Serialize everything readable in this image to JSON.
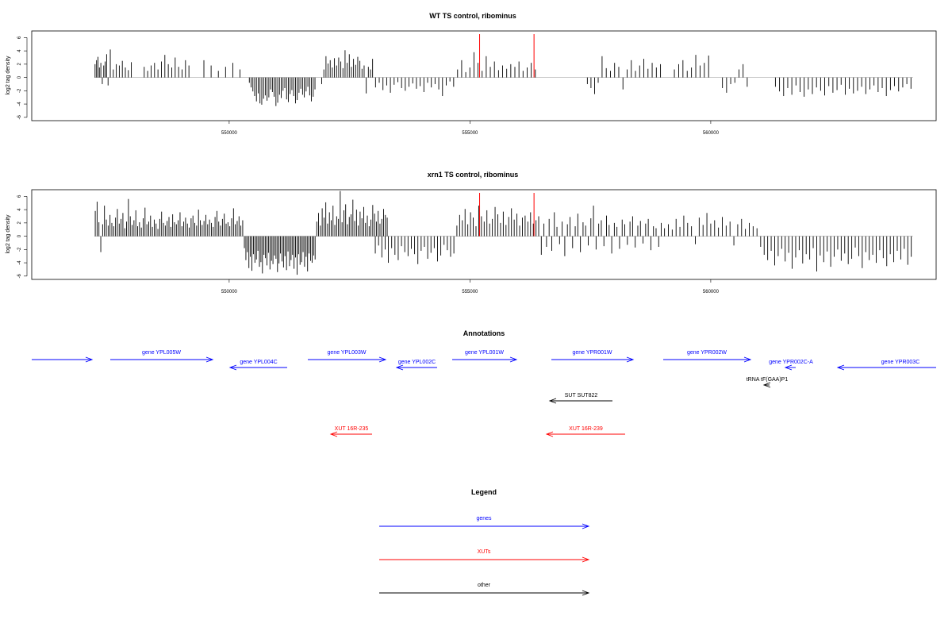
{
  "chart_data": [
    {
      "type": "bar",
      "title": "WT TS control, ribominus",
      "ylabel": "log2 tag density",
      "xlabel": "",
      "ylim": [
        -6.5,
        7
      ],
      "yticks": [
        -6,
        -4,
        -2,
        0,
        2,
        4,
        6
      ],
      "xticks": [
        550000,
        555000,
        560000
      ],
      "xlim": [
        545900,
        564680
      ],
      "grid": false,
      "marker_lines": {
        "x": [
          555200,
          556330
        ],
        "color": "#ff0000"
      },
      "series": [
        {
          "x_range": [
            547200,
            547500
          ],
          "values": [
            2.0,
            2.6,
            3.1,
            1.5,
            2.2,
            -1.0,
            1.8,
            2.4,
            3.5,
            -1.2
          ]
        },
        {
          "x_range": [
            547500,
            548000
          ],
          "values": [
            4.2,
            1.2,
            2.0,
            1.8,
            2.5,
            1.5,
            1.1,
            2.3
          ]
        },
        {
          "x_range": [
            548200,
            549200
          ],
          "values": [
            1.6,
            1.0,
            1.8,
            2.2,
            1.2,
            2.4,
            3.4,
            2.0,
            1.5,
            3.0,
            1.6,
            1.2,
            2.6,
            1.8
          ]
        },
        {
          "x_range": [
            549400,
            550300
          ],
          "values": [
            2.6,
            1.8,
            1.0,
            1.6,
            2.2,
            1.2
          ]
        },
        {
          "x_range": [
            550400,
            551800
          ],
          "values": [
            -0.8,
            -1.5,
            -2.1,
            -2.8,
            -3.6,
            -2.4,
            -3.9,
            -4.1,
            -3.2,
            -2.7,
            -3.5,
            -3.0,
            -1.8,
            -2.2,
            -2.9,
            -4.3,
            -3.8,
            -2.6,
            -3.1,
            -2.0,
            -1.6,
            -3.3,
            -3.7,
            -2.5,
            -1.9,
            -2.8,
            -3.9,
            -3.4,
            -2.3,
            -1.7,
            -2.6,
            -3.0,
            -2.1,
            -1.4,
            -2.7,
            -3.6,
            -2.9,
            -1.8
          ]
        },
        {
          "x_range": [
            551900,
            553000
          ],
          "values": [
            -1.0,
            1.2,
            3.2,
            2.1,
            2.6,
            1.5,
            2.9,
            1.8,
            3.0,
            2.4,
            1.4,
            4.1,
            2.2,
            3.5,
            1.6,
            2.8,
            1.9,
            3.1,
            2.5,
            1.3,
            1.8,
            -2.4,
            1.6,
            1.2,
            2.8
          ]
        },
        {
          "x_range": [
            553000,
            554700
          ],
          "values": [
            -1.5,
            -0.8,
            -1.9,
            -1.2,
            -2.3,
            -1.1,
            -0.7,
            -1.6,
            -2.0,
            -1.4,
            -0.9,
            -1.7,
            -1.3,
            -2.2,
            -0.8,
            -1.5,
            -1.0,
            -1.8,
            -2.8,
            -1.2,
            -0.6,
            -1.4
          ]
        },
        {
          "x_range": [
            554700,
            556400
          ],
          "values": [
            1.2,
            2.6,
            0.8,
            1.5,
            3.8,
            2.2,
            1.0,
            3.2,
            1.6,
            2.4,
            1.1,
            1.8,
            1.3,
            2.0,
            1.6,
            2.4,
            1.0,
            1.5,
            2.2,
            1.2
          ]
        },
        {
          "x_range": [
            557400,
            557700
          ],
          "values": [
            -1.0,
            -1.6,
            -2.5,
            -0.8
          ]
        },
        {
          "x_range": [
            557700,
            559000
          ],
          "values": [
            3.2,
            1.4,
            1.0,
            2.2,
            1.6,
            -1.8,
            1.2,
            2.6,
            1.0,
            1.8,
            2.8,
            1.3,
            2.2,
            1.5,
            2.0
          ]
        },
        {
          "x_range": [
            559200,
            560000
          ],
          "values": [
            1.2,
            2.0,
            2.6,
            1.0,
            1.5,
            3.4,
            1.8,
            2.2,
            3.3
          ]
        },
        {
          "x_range": [
            560200,
            560800
          ],
          "values": [
            -1.6,
            -2.3,
            -1.0,
            -0.8,
            1.2,
            2.0,
            -1.4
          ]
        },
        {
          "x_range": [
            561300,
            564200
          ],
          "values": [
            -1.4,
            -2.1,
            -2.8,
            -1.6,
            -2.6,
            -1.2,
            -2.2,
            -2.9,
            -1.8,
            -2.5,
            -1.5,
            -2.0,
            -2.7,
            -1.3,
            -2.3,
            -1.9,
            -1.1,
            -2.6,
            -1.7,
            -2.4,
            -2.0,
            -1.4,
            -2.5,
            -1.8,
            -1.2,
            -2.2,
            -1.6,
            -2.8,
            -1.9,
            -1.3,
            -2.1,
            -1.5,
            -1.0,
            -1.7
          ]
        }
      ]
    },
    {
      "type": "bar",
      "title": "xrn1 TS control, ribominus",
      "ylabel": "log2 tag density",
      "xlabel": "",
      "ylim": [
        -6.5,
        7
      ],
      "yticks": [
        -6,
        -4,
        -2,
        0,
        2,
        4,
        6
      ],
      "xticks": [
        550000,
        555000,
        560000
      ],
      "xlim": [
        545900,
        564680
      ],
      "grid": false,
      "marker_lines": {
        "x": [
          555200,
          556330
        ],
        "color": "#ff0000"
      },
      "series": [
        {
          "x_range": [
            547200,
            550300
          ],
          "values": [
            3.8,
            5.2,
            2.1,
            -2.4,
            1.8,
            4.6,
            2.5,
            1.6,
            3.2,
            2.0,
            1.5,
            2.8,
            4.1,
            1.9,
            2.6,
            3.5,
            1.2,
            2.2,
            5.6,
            3.0,
            1.7,
            2.4,
            3.9,
            1.5,
            2.1,
            1.3,
            2.7,
            4.3,
            1.8,
            2.2,
            3.1,
            1.4,
            2.5,
            1.9,
            1.1,
            2.6,
            3.7,
            2.0,
            1.6,
            2.3,
            2.9,
            1.4,
            3.3,
            2.1,
            1.8,
            2.4,
            3.6,
            1.5,
            2.2,
            2.8,
            1.9,
            1.3,
            2.7,
            3.1,
            2.0,
            1.6,
            4.0,
            2.4,
            1.7,
            2.3,
            3.2,
            1.8,
            2.5,
            2.0,
            1.4,
            2.9,
            3.8,
            2.2,
            1.6,
            2.6,
            3.4,
            1.9,
            2.1,
            1.5,
            2.7,
            4.2,
            1.8,
            2.3,
            3.0,
            1.6,
            2.4
          ]
        },
        {
          "x_range": [
            550300,
            551800
          ],
          "values": [
            -1.8,
            -3.6,
            -2.4,
            -4.8,
            -3.1,
            -5.2,
            -2.7,
            -4.0,
            -3.5,
            -2.2,
            -4.6,
            -3.9,
            -5.6,
            -2.8,
            -3.3,
            -4.4,
            -2.5,
            -5.0,
            -3.7,
            -4.2,
            -2.9,
            -3.4,
            -5.4,
            -4.1,
            -2.6,
            -3.8,
            -4.7,
            -3.0,
            -5.1,
            -2.3,
            -4.5,
            -3.6,
            -2.8,
            -4.9,
            -3.2,
            -5.8,
            -2.7,
            -4.3,
            -3.9,
            -2.4,
            -4.6,
            -3.1,
            -5.3,
            -2.6,
            -3.7,
            -4.0,
            -2.9,
            -3.5
          ]
        },
        {
          "x_range": [
            551800,
            553300
          ],
          "values": [
            2.2,
            3.5,
            1.6,
            4.2,
            2.8,
            5.1,
            1.9,
            3.6,
            2.4,
            4.6,
            1.7,
            3.0,
            2.6,
            6.8,
            2.1,
            3.9,
            4.8,
            1.8,
            2.9,
            3.3,
            5.5,
            2.3,
            4.0,
            1.6,
            3.7,
            2.7,
            4.4,
            2.0,
            3.1,
            1.5,
            2.5,
            4.7,
            3.4,
            2.2,
            3.8,
            1.9,
            2.6,
            4.1,
            3.2,
            2.8
          ]
        },
        {
          "x_range": [
            553000,
            554700
          ],
          "values": [
            -2.6,
            -1.4,
            -3.2,
            -2.0,
            -4.0,
            -1.8,
            -2.8,
            -3.6,
            -1.5,
            -2.4,
            -3.0,
            -1.9,
            -2.7,
            -4.2,
            -2.2,
            -1.6,
            -3.4,
            -2.5,
            -1.8,
            -3.8,
            -2.9,
            -1.3,
            -2.1,
            -3.1,
            -2.6
          ]
        },
        {
          "x_range": [
            554700,
            556400
          ],
          "values": [
            1.6,
            3.2,
            2.4,
            4.1,
            1.8,
            3.6,
            2.8,
            1.5,
            4.6,
            3.0,
            2.2,
            3.9,
            1.9,
            2.6,
            4.4,
            3.3,
            2.0,
            3.7,
            1.7,
            2.9,
            4.2,
            2.5,
            3.4,
            1.6,
            2.8,
            3.1,
            2.2,
            3.6,
            1.9,
            2.4
          ]
        },
        {
          "x_range": [
            556400,
            559000
          ],
          "values": [
            3.0,
            -2.8,
            1.9,
            -1.6,
            2.6,
            -2.2,
            3.6,
            1.4,
            -1.2,
            2.2,
            -3.0,
            1.8,
            2.9,
            -1.8,
            1.5,
            3.4,
            -2.4,
            2.1,
            1.6,
            -1.4,
            2.7,
            4.6,
            -2.0,
            1.9,
            2.4,
            -1.5,
            3.1,
            1.7,
            -2.6,
            2.0,
            1.4,
            -1.9,
            2.5,
            1.8,
            -1.3,
            2.2,
            3.0,
            -1.7,
            1.6,
            2.3,
            -1.1,
            1.9,
            2.6,
            -2.1,
            1.5,
            1.2,
            -1.6,
            2.0
          ]
        },
        {
          "x_range": [
            559000,
            561000
          ],
          "values": [
            1.2,
            1.8,
            1.0,
            2.6,
            1.4,
            3.1,
            2.0,
            1.5,
            -1.2,
            2.8,
            1.7,
            3.5,
            1.9,
            2.4,
            1.3,
            2.9,
            1.6,
            2.2,
            -1.4,
            1.8,
            2.6,
            1.1,
            2.0,
            1.5,
            1.2
          ]
        },
        {
          "x_range": [
            561000,
            564200
          ],
          "values": [
            -1.6,
            -2.8,
            -3.6,
            -2.2,
            -4.4,
            -3.0,
            -1.9,
            -3.8,
            -2.5,
            -4.9,
            -3.2,
            -2.1,
            -4.1,
            -2.7,
            -3.5,
            -1.8,
            -5.3,
            -2.9,
            -3.9,
            -2.3,
            -4.6,
            -3.1,
            -2.0,
            -3.7,
            -2.6,
            -4.2,
            -3.4,
            -1.7,
            -3.0,
            -4.8,
            -2.4,
            -3.6,
            -2.8,
            -4.0,
            -2.1,
            -3.3,
            -4.5,
            -2.7,
            -3.9,
            -2.2,
            -3.5,
            -1.9,
            -4.3,
            -3.1
          ]
        }
      ]
    }
  ],
  "annotations": {
    "title": "Annotations",
    "items": [
      {
        "label": "",
        "x1": 40,
        "x2": 116,
        "row": 0,
        "dir": "right",
        "color": "#0000ff"
      },
      {
        "label": "gene YPL005W",
        "x1": 139,
        "x2": 268,
        "row": 0,
        "dir": "right",
        "color": "#0000ff"
      },
      {
        "label": "gene YPL004C",
        "x1": 290,
        "x2": 362,
        "row": 1,
        "dir": "left",
        "color": "#0000ff"
      },
      {
        "label": "gene YPL003W",
        "x1": 388,
        "x2": 486,
        "row": 0,
        "dir": "right",
        "color": "#0000ff"
      },
      {
        "label": "gene YPL002C",
        "x1": 500,
        "x2": 551,
        "row": 1,
        "dir": "left",
        "color": "#0000ff"
      },
      {
        "label": "gene YPL001W",
        "x1": 570,
        "x2": 651,
        "row": 0,
        "dir": "right",
        "color": "#0000ff"
      },
      {
        "label": "gene YPR001W",
        "x1": 695,
        "x2": 798,
        "row": 0,
        "dir": "right",
        "color": "#0000ff"
      },
      {
        "label": "gene YPR002W",
        "x1": 836,
        "x2": 946,
        "row": 0,
        "dir": "right",
        "color": "#0000ff"
      },
      {
        "label": "gene YPR002C-A",
        "x1": 990,
        "x2": 1003,
        "row": 1,
        "dir": "left",
        "color": "#0000ff"
      },
      {
        "label": "gene YPR003C",
        "x1": 1056,
        "x2": 1180,
        "row": 1,
        "dir": "left",
        "color": "#0000ff"
      },
      {
        "label": "tRNA tF(GAA)P1",
        "x1": 963,
        "x2": 970,
        "row": 2,
        "dir": "left",
        "color": "#000000"
      },
      {
        "label": "SUT SUT822",
        "x1": 693,
        "x2": 772,
        "row": 3,
        "dir": "left",
        "color": "#000000"
      },
      {
        "label": "XUT 16R-235",
        "x1": 417,
        "x2": 469,
        "row": 4,
        "dir": "left",
        "color": "#ff0000"
      },
      {
        "label": "XUT 16R-239",
        "x1": 689,
        "x2": 788,
        "row": 4,
        "dir": "left",
        "color": "#ff0000"
      }
    ]
  },
  "legend": {
    "title": "Legend",
    "items": [
      {
        "label": "genes",
        "color": "#0000ff"
      },
      {
        "label": "XUTs",
        "color": "#ff0000"
      },
      {
        "label": "other",
        "color": "#000000"
      }
    ]
  }
}
